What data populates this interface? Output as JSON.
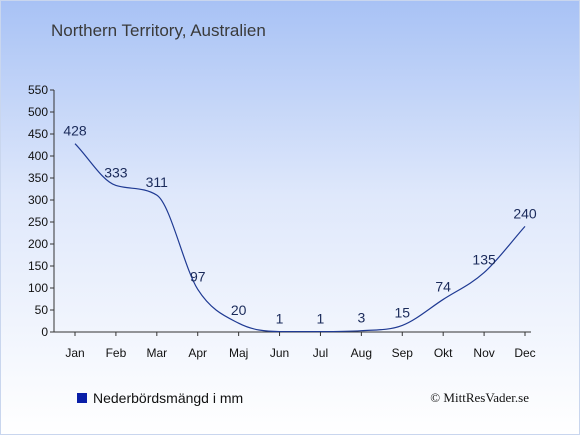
{
  "title": "Northern Territory, Australien",
  "legend": {
    "label": "Nederbördsmängd i mm",
    "color": "#0a1fa8"
  },
  "credit": "© MittResVader.se",
  "chart_data": {
    "type": "line",
    "categories": [
      "Jan",
      "Feb",
      "Mar",
      "Apr",
      "Maj",
      "Jun",
      "Jul",
      "Aug",
      "Sep",
      "Okt",
      "Nov",
      "Dec"
    ],
    "series": [
      {
        "name": "Nederbördsmängd i mm",
        "values": [
          428,
          333,
          311,
          97,
          20,
          1,
          1,
          3,
          15,
          74,
          135,
          240
        ]
      }
    ],
    "yticks": [
      0,
      50,
      100,
      150,
      200,
      250,
      300,
      350,
      400,
      450,
      500,
      550
    ],
    "ylim": [
      0,
      550
    ],
    "line_color": "#1f3a93",
    "grid": false
  }
}
